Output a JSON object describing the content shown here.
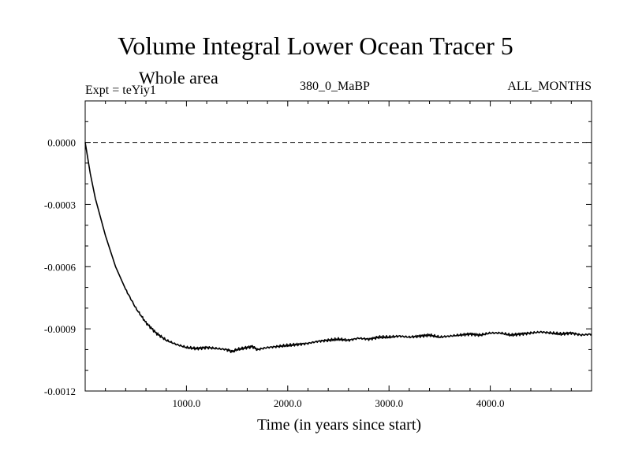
{
  "chart_data": {
    "type": "line",
    "title": "Volume Integral Lower Ocean Tracer 5",
    "subtitle": "Whole area",
    "annotations": {
      "experiment": "Expt = teYiy1",
      "period": "380_0_MaBP",
      "months": "ALL_MONTHS"
    },
    "xlabel": "Time (in years since start)",
    "ylabel": "",
    "xlim": [
      0,
      5000
    ],
    "ylim": [
      -0.0012,
      0.0002
    ],
    "x_ticks": [
      1000,
      2000,
      3000,
      4000
    ],
    "x_tick_labels": [
      "1000.0",
      "2000.0",
      "3000.0",
      "4000.0"
    ],
    "y_ticks": [
      0,
      -0.0003,
      -0.0006,
      -0.0009,
      -0.0012
    ],
    "y_tick_labels": [
      "0.0000",
      "-0.0003",
      "-0.0006",
      "-0.0009",
      "-0.0012"
    ],
    "reference_line": {
      "y": 0,
      "style": "dashed"
    },
    "series": [
      {
        "name": "Lower Ocean Tracer 5",
        "x": [
          0,
          50,
          100,
          200,
          300,
          400,
          500,
          600,
          700,
          800,
          900,
          1000,
          1100,
          1200,
          1300,
          1400,
          1450,
          1500,
          1600,
          1650,
          1700,
          1800,
          1900,
          2000,
          2100,
          2200,
          2300,
          2400,
          2500,
          2600,
          2700,
          2800,
          2900,
          3000,
          3100,
          3200,
          3300,
          3400,
          3500,
          3600,
          3700,
          3800,
          3900,
          4000,
          4100,
          4200,
          4300,
          4400,
          4500,
          4600,
          4700,
          4800,
          4900,
          5000
        ],
        "y": [
          0.0,
          -0.00015,
          -0.00027,
          -0.00045,
          -0.0006,
          -0.00071,
          -0.0008,
          -0.00087,
          -0.00092,
          -0.000955,
          -0.000975,
          -0.00099,
          -0.000995,
          -0.00099,
          -0.000995,
          -0.001,
          -0.00101,
          -0.001,
          -0.00099,
          -0.000985,
          -0.001,
          -0.00099,
          -0.000985,
          -0.00098,
          -0.000975,
          -0.00097,
          -0.00096,
          -0.000955,
          -0.00095,
          -0.000955,
          -0.000945,
          -0.00095,
          -0.00094,
          -0.00094,
          -0.000935,
          -0.00094,
          -0.000935,
          -0.00093,
          -0.00094,
          -0.000935,
          -0.00093,
          -0.000925,
          -0.00093,
          -0.00092,
          -0.00092,
          -0.00093,
          -0.000925,
          -0.00092,
          -0.000915,
          -0.00092,
          -0.000925,
          -0.00092,
          -0.00093,
          -0.000925
        ]
      }
    ]
  }
}
